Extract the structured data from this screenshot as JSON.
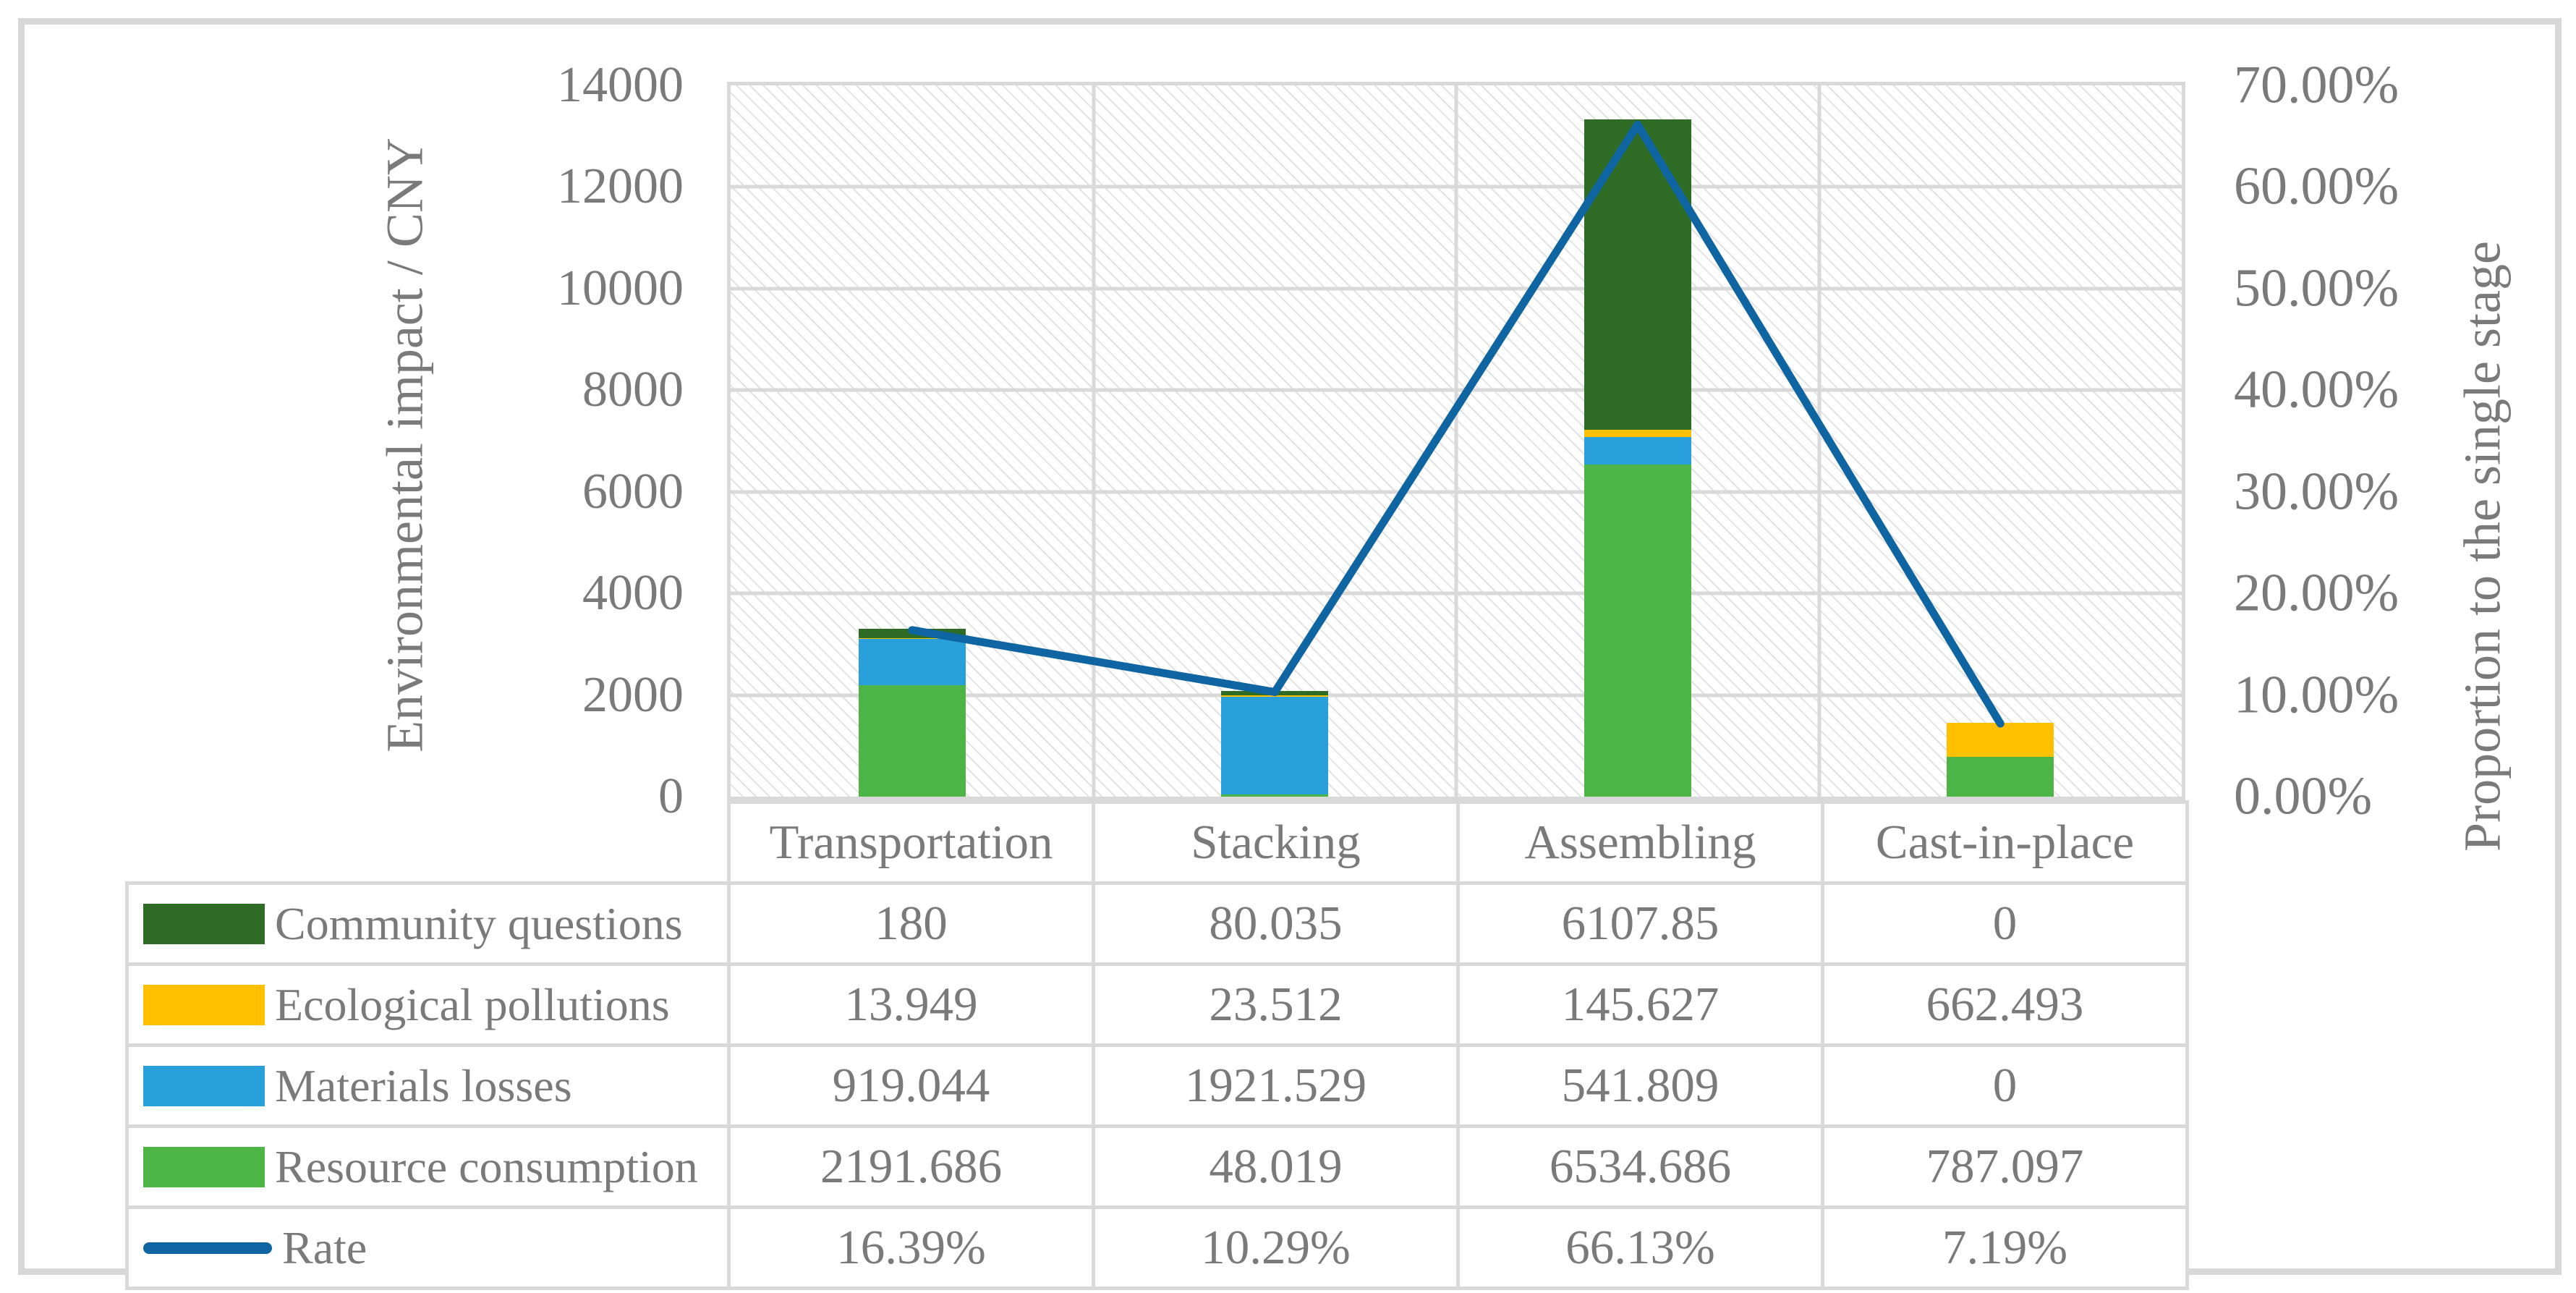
{
  "chart_data": {
    "type": "combo-stacked-bar-line",
    "categories": [
      "Transportation",
      "Stacking",
      "Assembling",
      "Cast-in-place"
    ],
    "bar_series_bottom_to_top": [
      {
        "name": "Resource consumption",
        "color": "#4CB545",
        "values": [
          2191.686,
          48.019,
          6534.686,
          787.097
        ]
      },
      {
        "name": "Materials losses",
        "color": "#29A0D9",
        "values": [
          919.044,
          1921.529,
          541.809,
          0
        ]
      },
      {
        "name": "Ecological pollutions",
        "color": "#FFC000",
        "values": [
          13.949,
          23.512,
          145.627,
          662.493
        ]
      },
      {
        "name": "Community questions",
        "color": "#2E6B24",
        "values": [
          180,
          80.035,
          6107.85,
          0
        ]
      }
    ],
    "line_series": {
      "name": "Rate",
      "color": "#0F64A2",
      "values_percent": [
        16.39,
        10.29,
        66.13,
        7.19
      ]
    },
    "left_axis": {
      "title": "Environmental impact / CNY",
      "min": 0,
      "max": 14000,
      "step": 2000,
      "ticks": [
        "14000",
        "12000",
        "10000",
        "8000",
        "6000",
        "4000",
        "2000",
        "0"
      ]
    },
    "right_axis": {
      "title": "Proportion to the single stage",
      "min": 0,
      "max": 70,
      "step": 10,
      "ticks": [
        "70.00%",
        "60.00%",
        "50.00%",
        "40.00%",
        "30.00%",
        "20.00%",
        "10.00%",
        "0.00%"
      ]
    },
    "grid": true,
    "legend_position": "table-left",
    "plot_background": "light-diagonal-hatch"
  },
  "table": {
    "column_headers": [
      "Transportation",
      "Stacking",
      "Assembling",
      "Cast-in-place"
    ],
    "rows": [
      {
        "label": "Community questions",
        "key": "swatch",
        "color": "#2E6B24",
        "cells": [
          "180",
          "80.035",
          "6107.85",
          "0"
        ]
      },
      {
        "label": "Ecological pollutions",
        "key": "swatch",
        "color": "#FFC000",
        "cells": [
          "13.949",
          "23.512",
          "145.627",
          "662.493"
        ]
      },
      {
        "label": "Materials losses",
        "key": "swatch",
        "color": "#29A0D9",
        "cells": [
          "919.044",
          "1921.529",
          "541.809",
          "0"
        ]
      },
      {
        "label": "Resource consumption",
        "key": "swatch",
        "color": "#4CB545",
        "cells": [
          "2191.686",
          "48.019",
          "6534.686",
          "787.097"
        ]
      },
      {
        "label": "Rate",
        "key": "line",
        "color": "#0F64A2",
        "cells": [
          "16.39%",
          "10.29%",
          "66.13%",
          "7.19%"
        ]
      }
    ]
  },
  "colors": {
    "text": "#7A7A7A",
    "grid": "#D9D9D9",
    "frame": "#D8D8D8",
    "hatch": "#E2E2E2"
  }
}
